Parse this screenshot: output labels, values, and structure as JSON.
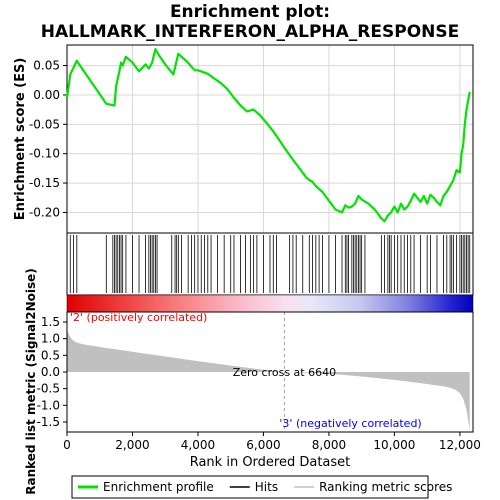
{
  "chart_data": {
    "type": "line",
    "title_line1": "Enrichment plot:",
    "title_line2": "HALLMARK_INTERFERON_ALPHA_RESPONSE",
    "top_panel": {
      "ylabel": "Enrichment score (ES)",
      "ylim": [
        -0.235,
        0.085
      ],
      "yticks": [
        "0.05",
        "0.00",
        "-0.05",
        "-0.10",
        "-0.15",
        "-0.20"
      ],
      "ytick_values": [
        0.05,
        0.0,
        -0.05,
        -0.1,
        -0.15,
        -0.2
      ],
      "grid": true,
      "line_color": "#00e400",
      "series": [
        {
          "x": [
            0,
            100,
            300,
            1200,
            1450,
            1500,
            1600,
            1650,
            1700,
            1800,
            2000,
            2200,
            2400,
            2500,
            2550,
            2600,
            2700,
            2800,
            3000,
            3250,
            3400,
            3500,
            3700,
            3800,
            3900,
            4000,
            4100,
            4300,
            4500,
            4700,
            4900,
            5100,
            5300,
            5500,
            5700,
            5900,
            6100,
            6300,
            6500,
            6640,
            6900,
            7100,
            7300,
            7400,
            7500,
            7600,
            7800,
            8000,
            8200,
            8400,
            8500,
            8600,
            8700,
            8800,
            8900,
            9000,
            9200,
            9400,
            9600,
            9700,
            9800,
            9900,
            10000,
            10100,
            10200,
            10300,
            10400,
            10500,
            10600,
            10700,
            10800,
            10900,
            11000,
            11100,
            11200,
            11300,
            11400,
            11500,
            11600,
            11700,
            11800,
            11900,
            12000,
            12050,
            12100,
            12150,
            12200,
            12300
          ],
          "y": [
            -0.005,
            0.035,
            0.058,
            -0.015,
            -0.018,
            0.015,
            0.04,
            0.055,
            0.05,
            0.065,
            0.055,
            0.04,
            0.052,
            0.045,
            0.05,
            0.055,
            0.078,
            0.068,
            0.052,
            0.035,
            0.07,
            0.065,
            0.055,
            0.048,
            0.042,
            0.042,
            0.04,
            0.036,
            0.028,
            0.02,
            0.01,
            -0.005,
            -0.018,
            -0.028,
            -0.025,
            -0.035,
            -0.048,
            -0.062,
            -0.078,
            -0.09,
            -0.11,
            -0.125,
            -0.14,
            -0.145,
            -0.148,
            -0.155,
            -0.165,
            -0.18,
            -0.195,
            -0.2,
            -0.188,
            -0.192,
            -0.19,
            -0.185,
            -0.172,
            -0.178,
            -0.185,
            -0.195,
            -0.21,
            -0.215,
            -0.205,
            -0.2,
            -0.19,
            -0.2,
            -0.185,
            -0.195,
            -0.19,
            -0.18,
            -0.168,
            -0.175,
            -0.182,
            -0.172,
            -0.185,
            -0.17,
            -0.175,
            -0.182,
            -0.188,
            -0.172,
            -0.165,
            -0.155,
            -0.145,
            -0.128,
            -0.132,
            -0.1,
            -0.085,
            -0.05,
            -0.025,
            0.005
          ]
        }
      ]
    },
    "hits": [
      100,
      200,
      300,
      1200,
      1400,
      1450,
      1500,
      1550,
      1600,
      1650,
      1700,
      1800,
      2000,
      2200,
      2400,
      2500,
      2550,
      2600,
      2650,
      2700,
      2750,
      3200,
      3300,
      3350,
      3400,
      3500,
      3700,
      3800,
      3900,
      4000,
      4100,
      4200,
      4300,
      4400,
      4600,
      4800,
      5000,
      5100,
      5300,
      5450,
      5600,
      5700,
      5800,
      6000,
      6200,
      6300,
      6400,
      6800,
      6900,
      7000,
      7200,
      7400,
      7500,
      7600,
      7700,
      7800,
      8000,
      8200,
      8400,
      8500,
      8550,
      8600,
      8700,
      8750,
      8800,
      8850,
      8900,
      8950,
      9000,
      9100,
      9600,
      9700,
      9800,
      9850,
      9900,
      10000,
      10100,
      10200,
      10300,
      10400,
      10500,
      10600,
      10800,
      11000,
      11100,
      11300,
      11500,
      11600,
      11700,
      11750,
      11800,
      11900,
      12000,
      12050,
      12100,
      12150,
      12200,
      12250,
      12300
    ],
    "bottom_panel": {
      "ylabel": "Ranked list metric (Signal2Noise)",
      "xlabel": "Rank in Ordered Dataset",
      "ylim": [
        -1.8,
        1.8
      ],
      "yticks": [
        "1.5",
        "1.0",
        "0.5",
        "0.0",
        "-0.5",
        "-1.0",
        "-1.5"
      ],
      "ytick_values": [
        1.5,
        1.0,
        0.5,
        0.0,
        -0.5,
        -1.0,
        -1.5
      ],
      "xlim": [
        0,
        12400
      ],
      "xticks": [
        "0",
        "2,000",
        "4,000",
        "6,000",
        "8,000",
        "10,000",
        "12,000"
      ],
      "xtick_values": [
        0,
        2000,
        4000,
        6000,
        8000,
        10000,
        12000
      ],
      "zero_cross": 6640,
      "zero_cross_label": "Zero cross at 6640",
      "positive_label": "'2' (positively correlated)",
      "negative_label": "'3' (negatively correlated)",
      "positive_color": "#ff0000",
      "negative_color": "#0000ff",
      "fill_color": "#c0c0c0"
    },
    "legend": {
      "entries": [
        "Enrichment profile",
        "Hits",
        "Ranking metric scores"
      ],
      "colors": [
        "#00e400",
        "#000000",
        "#c0c0c0"
      ]
    }
  }
}
